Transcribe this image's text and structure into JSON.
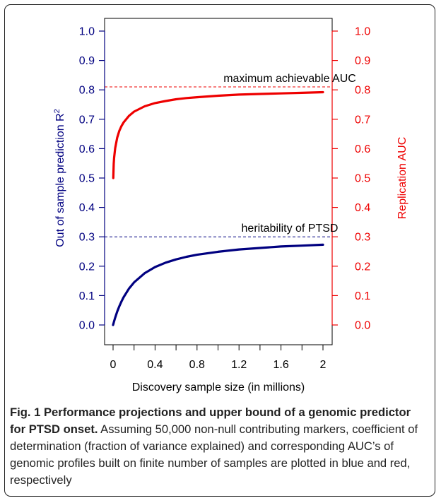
{
  "chart_data": {
    "type": "line",
    "xlabel": "Discovery sample size (in millions)",
    "ylabel_left": "Out of sample prediction R",
    "ylabel_left_sup": "2",
    "ylabel_right": "Replication AUC",
    "xlim": [
      0,
      2
    ],
    "ylim": [
      0,
      1.0
    ],
    "x_ticks": [
      0,
      0.4,
      0.8,
      1.2,
      1.6,
      2
    ],
    "x_tick_labels": [
      "0",
      "0.4",
      "0.8",
      "1.2",
      "1.6",
      "2"
    ],
    "y_ticks": [
      0.0,
      0.1,
      0.2,
      0.3,
      0.4,
      0.5,
      0.6,
      0.7,
      0.8,
      0.9,
      1.0
    ],
    "y_tick_labels": [
      "0.0",
      "0.1",
      "0.2",
      "0.3",
      "0.4",
      "0.5",
      "0.6",
      "0.7",
      "0.8",
      "0.9",
      "1.0"
    ],
    "grid": false,
    "series": [
      {
        "axis": "left",
        "color": "#000080",
        "x": [
          0,
          0.01,
          0.02,
          0.04,
          0.06,
          0.08,
          0.1,
          0.15,
          0.2,
          0.3,
          0.4,
          0.5,
          0.6,
          0.7,
          0.8,
          1.0,
          1.2,
          1.4,
          1.6,
          1.8,
          2.0
        ],
        "values": [
          0.0,
          0.013,
          0.025,
          0.046,
          0.064,
          0.08,
          0.094,
          0.123,
          0.145,
          0.176,
          0.197,
          0.212,
          0.223,
          0.232,
          0.239,
          0.249,
          0.257,
          0.262,
          0.267,
          0.27,
          0.273
        ]
      },
      {
        "axis": "right",
        "color": "#ee0000",
        "x": [
          0.002,
          0.006,
          0.01,
          0.02,
          0.04,
          0.06,
          0.08,
          0.1,
          0.15,
          0.2,
          0.3,
          0.4,
          0.5,
          0.6,
          0.7,
          0.8,
          1.0,
          1.2,
          1.4,
          1.6,
          1.8,
          2.0
        ],
        "values": [
          0.5,
          0.548,
          0.57,
          0.602,
          0.638,
          0.661,
          0.677,
          0.689,
          0.711,
          0.726,
          0.744,
          0.755,
          0.762,
          0.768,
          0.772,
          0.775,
          0.78,
          0.784,
          0.786,
          0.788,
          0.79,
          0.792
        ]
      }
    ],
    "reference_lines": [
      {
        "y": 0.81,
        "axis": "right",
        "color": "#ee0000",
        "label": "maximum achievable AUC"
      },
      {
        "y": 0.3,
        "axis": "left",
        "color": "#000080",
        "label": "heritability of PTSD"
      }
    ]
  },
  "caption": {
    "label": "Fig. 1",
    "title": "Performance projections and upper bound of a genomic predictor for PTSD onset.",
    "body": "Assuming 50,000 non-null contributing markers, coefficient of determination (fraction of variance explained) and corresponding AUC’s of genomic profiles built on finite number of samples are plotted in blue and red, respectively"
  },
  "colors": {
    "left_axis": "#000080",
    "right_axis": "#ee0000",
    "frame": "#222222"
  }
}
